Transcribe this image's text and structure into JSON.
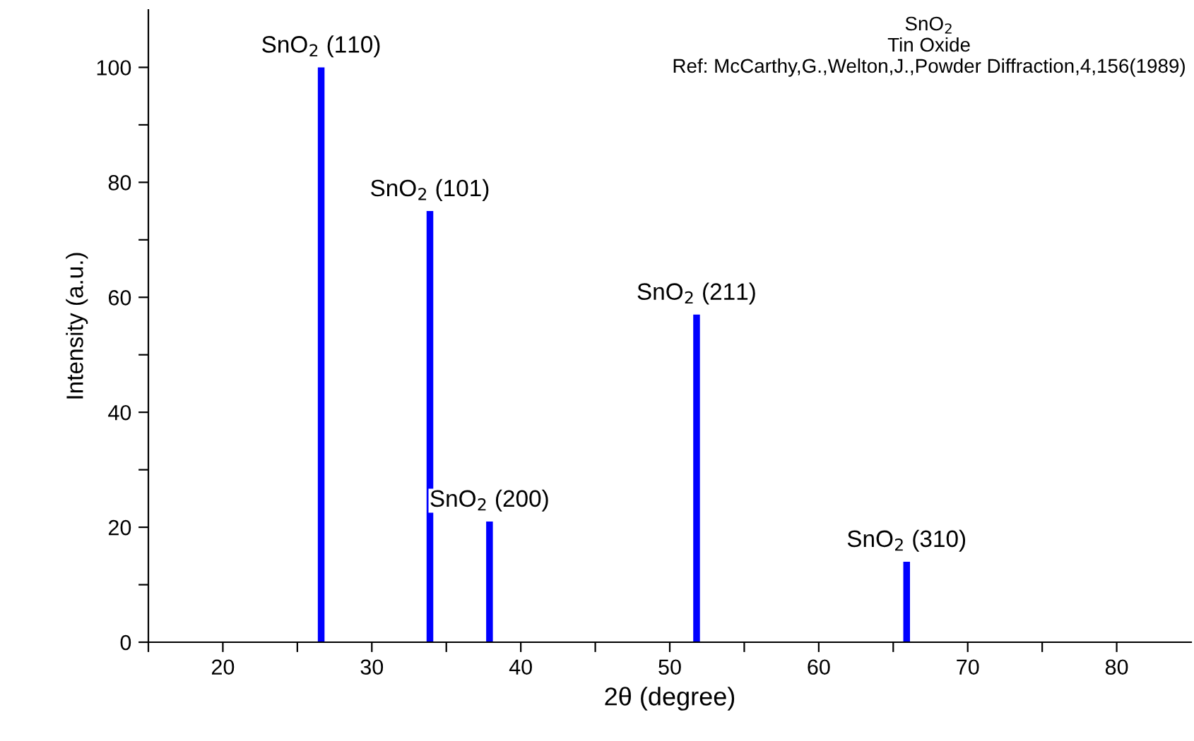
{
  "chart_data": {
    "type": "bar",
    "xlabel": "2θ (degree)",
    "ylabel": "Intensity (a.u.)",
    "x": [
      26.6,
      33.9,
      37.9,
      51.8,
      65.9
    ],
    "values": [
      100,
      75,
      21,
      57,
      14
    ],
    "color": "#0000ff",
    "xlim": [
      15,
      85
    ],
    "ylim": [
      0,
      110
    ],
    "xticks": [
      {
        "value": 15,
        "label": null
      },
      20,
      {
        "value": 25,
        "label": null
      },
      30,
      {
        "value": 35,
        "label": null
      },
      40,
      {
        "value": 45,
        "label": null
      },
      50,
      {
        "value": 55,
        "label": null
      },
      60,
      {
        "value": 65,
        "label": null
      },
      70,
      {
        "value": 75,
        "label": null
      },
      80
    ],
    "yticks": [
      0,
      {
        "value": 10,
        "label": null
      },
      20,
      {
        "value": 30,
        "label": null
      },
      40,
      {
        "value": 50,
        "label": null
      },
      60,
      {
        "value": 70,
        "label": null
      },
      80,
      {
        "value": 90,
        "label": null
      },
      100
    ],
    "grid": false,
    "annotations": [
      {
        "text": "SnO$_{2}$ (110)",
        "x": 26.6,
        "y": 100
      },
      {
        "text": "SnO$_{2}$ (101)",
        "x": 33.9,
        "y": 75
      },
      {
        "text": "SnO$_{2}$ (200)",
        "x": 37.9,
        "y": 21
      },
      {
        "text": "SnO$_{2}$ (211)",
        "x": 51.8,
        "y": 57
      },
      {
        "text": "SnO$_{2}$ (310)",
        "x": 65.9,
        "y": 14
      },
      "SnO$_{2}$\nTin Oxide\nRef: McCarthy,G.,Welton,J.,Powder Diffraction,4,156(1989)"
    ]
  }
}
